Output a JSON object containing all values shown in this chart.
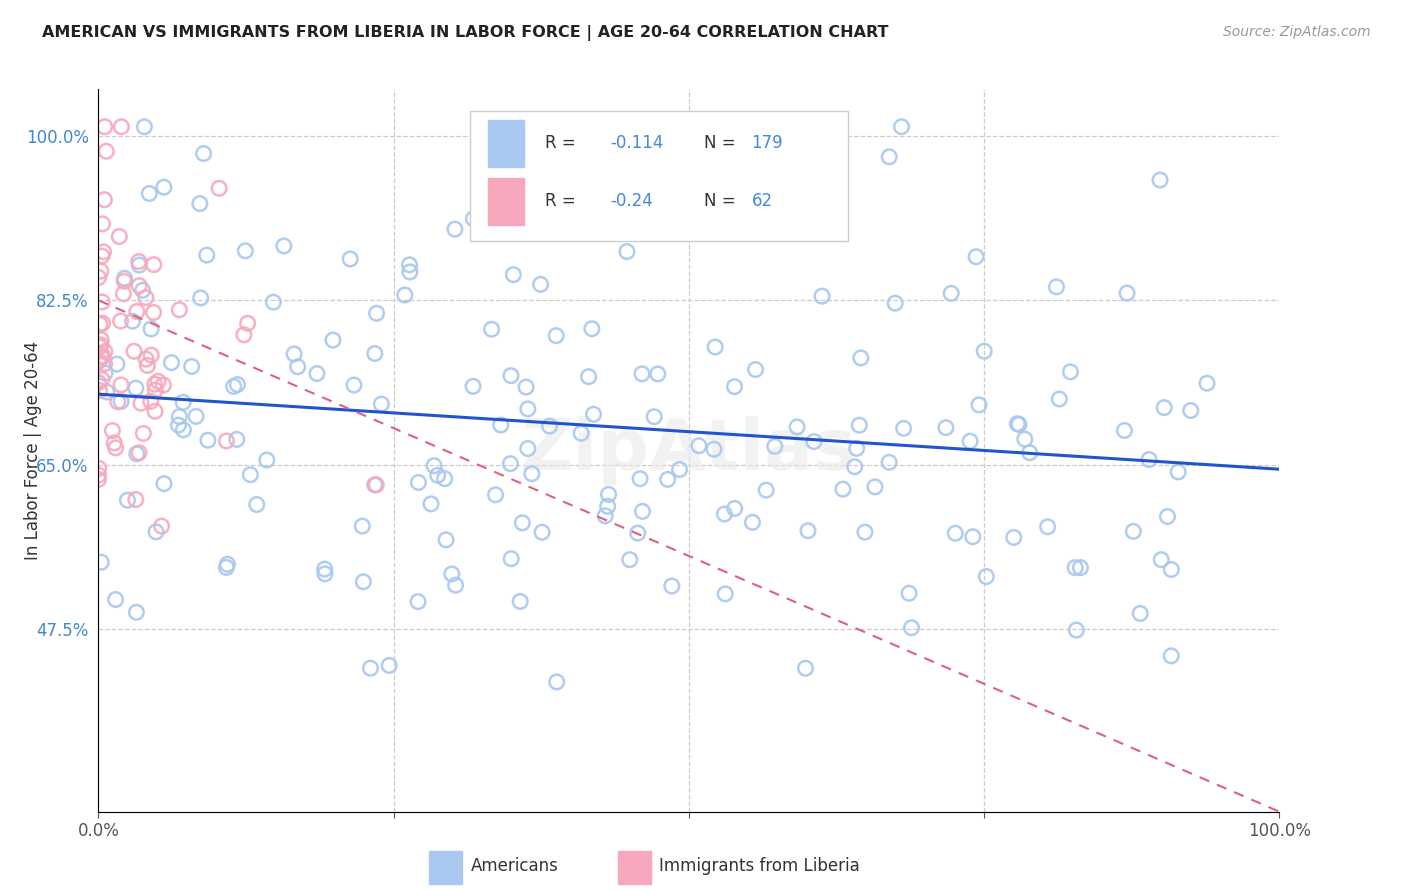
{
  "title": "AMERICAN VS IMMIGRANTS FROM LIBERIA IN LABOR FORCE | AGE 20-64 CORRELATION CHART",
  "source": "Source: ZipAtlas.com",
  "ylabel": "In Labor Force | Age 20-64",
  "r_americans": -0.114,
  "n_americans": 179,
  "r_liberia": -0.24,
  "n_liberia": 62,
  "americans_color": "#a8c8f0",
  "liberia_color": "#f8a8bc",
  "americans_line_color": "#2255cc",
  "liberia_line_color": "#e06080",
  "xlim": [
    0.0,
    1.0
  ],
  "ylim": [
    0.28,
    1.05
  ],
  "yticks": [
    0.475,
    0.65,
    0.825,
    1.0
  ],
  "ytick_labels": [
    "47.5%",
    "65.0%",
    "82.5%",
    "100.0%"
  ],
  "blue_line_start_y": 0.725,
  "blue_line_end_y": 0.645,
  "pink_line_start_y": 0.825,
  "pink_line_end_y": 0.28,
  "watermark": "ZipAtlas",
  "legend_text_color": "#333333",
  "legend_num_color": "#4488dd"
}
